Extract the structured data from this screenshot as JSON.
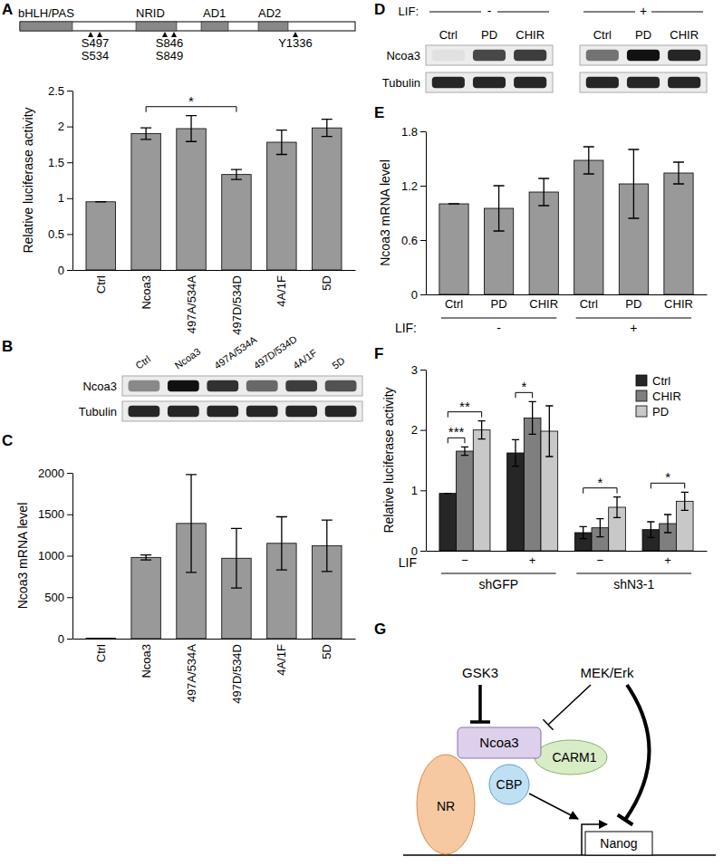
{
  "panel_labels": [
    "A",
    "B",
    "C",
    "D",
    "E",
    "F",
    "G"
  ],
  "domain_diagram": {
    "domains": [
      "bHLH/PAS",
      "NRID",
      "AD1",
      "AD2"
    ],
    "sites": [
      "S497",
      "S534",
      "S846",
      "S849",
      "Y1336"
    ]
  },
  "chart_data": [
    {
      "type": "bar",
      "categories": [
        "Ctrl",
        "Ncoa3",
        "497A/534A",
        "497D/534D",
        "4A/1F",
        "5D"
      ],
      "values": [
        0.95,
        1.9,
        1.97,
        1.33,
        1.78,
        1.98
      ],
      "errors": [
        0,
        0.08,
        0.18,
        0.07,
        0.17,
        0.12
      ],
      "color": "#999999",
      "y_label": "Relative luciferase activity",
      "ylim": [
        0,
        2.5
      ],
      "yticks": [
        0,
        0.5,
        1,
        1.5,
        2,
        2.5
      ],
      "significance": {
        "reference": "Ncoa3",
        "labels": [
          null,
          null,
          null,
          "*",
          null,
          null
        ]
      }
    },
    {
      "type": "bar",
      "categories": [
        "Ctrl",
        "Ncoa3",
        "497A/534A",
        "497D/534D",
        "4A/1F",
        "5D"
      ],
      "values": [
        5,
        980,
        1390,
        970,
        1150,
        1120
      ],
      "errors": [
        0,
        30,
        590,
        360,
        320,
        310
      ],
      "color": "#999999",
      "y_label": "Ncoa3 mRNA level",
      "ylim": [
        0,
        2000
      ],
      "yticks": [
        0,
        500,
        1000,
        1500,
        2000
      ]
    },
    {
      "type": "bar",
      "categories": [
        "Ctrl",
        "PD",
        "CHIR",
        "Ctrl",
        "PD",
        "CHIR"
      ],
      "values": [
        1,
        0.95,
        1.13,
        1.48,
        1.22,
        1.34
      ],
      "errors": [
        0,
        0.25,
        0.15,
        0.15,
        0.38,
        0.12
      ],
      "color": "#999999",
      "y_label": "Ncoa3 mRNA level",
      "ylim": [
        0,
        1.8
      ],
      "yticks": [
        0,
        0.6,
        1.2,
        1.8
      ],
      "groups": [
        "-",
        "+"
      ],
      "group_label": "LIF:"
    },
    {
      "type": "bar",
      "categories": [
        "−",
        "+",
        "−",
        "+"
      ],
      "groups": [
        "shGFP",
        "shN3-1"
      ],
      "group_label": "LIF",
      "y_label": "Relative luciferase activity",
      "ylim": [
        0,
        3
      ],
      "yticks": [
        0,
        1,
        2,
        3
      ],
      "legend": "top-right",
      "significance_reference": "Ctrl",
      "series": [
        {
          "name": "Ctrl",
          "color": "#262626",
          "values": [
            0.95,
            1.62,
            0.3,
            0.35
          ],
          "errors": [
            0,
            0.22,
            0.1,
            0.13
          ]
        },
        {
          "name": "CHIR",
          "color": "#7f7f7f",
          "values": [
            1.65,
            2.2,
            0.38,
            0.45
          ],
          "errors": [
            0.07,
            0.27,
            0.15,
            0.15
          ],
          "significance": [
            "***",
            "*",
            null,
            null
          ]
        },
        {
          "name": "PD",
          "color": "#c8c8c8",
          "values": [
            2,
            1.98,
            0.72,
            0.82
          ],
          "errors": [
            0.15,
            0.42,
            0.17,
            0.15
          ],
          "significance": [
            "**",
            null,
            "*",
            "*"
          ]
        }
      ]
    }
  ],
  "blots": [
    {
      "lanes": [
        "Ctrl",
        "Ncoa3",
        "497A/534A",
        "497D/534D",
        "4A/1F",
        "5D"
      ],
      "rows": [
        {
          "name": "Ncoa3",
          "intensity": [
            0.45,
            1,
            0.85,
            0.6,
            0.8,
            0.7
          ]
        },
        {
          "name": "Tubulin",
          "intensity": [
            0.9,
            0.9,
            0.9,
            0.9,
            0.9,
            0.9
          ]
        }
      ]
    },
    {
      "group_label": "LIF:",
      "groups": [
        "-",
        "+"
      ],
      "lanes": [
        "Ctrl",
        "PD",
        "CHIR",
        "Ctrl",
        "PD",
        "CHIR"
      ],
      "rows": [
        {
          "name": "Ncoa3",
          "intensity": [
            0.05,
            0.75,
            0.8,
            0.55,
            1,
            0.9
          ]
        },
        {
          "name": "Tubulin",
          "intensity": [
            0.9,
            0.9,
            0.9,
            0.9,
            0.9,
            0.9
          ]
        }
      ]
    }
  ],
  "model": {
    "nodes": [
      "GSK3",
      "MEK/Erk",
      "Ncoa3",
      "CARM1",
      "CBP",
      "NR",
      "Nanog"
    ]
  }
}
